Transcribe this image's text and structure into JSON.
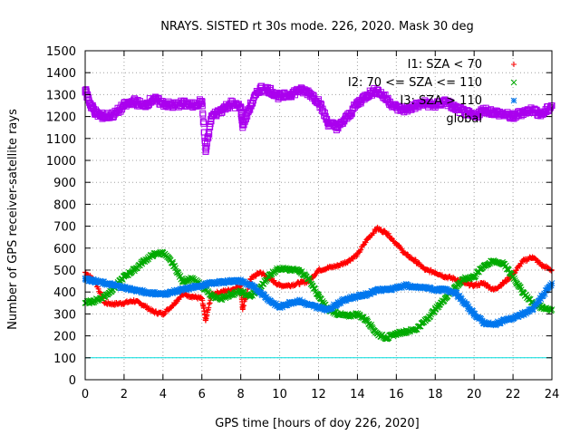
{
  "chart_data": {
    "type": "scatter",
    "title": "NRAYS. SISTED rt 30s mode. 226, 2020. Mask 30 deg",
    "xlabel": "GPS time [hours of doy 226, 2020]",
    "ylabel": "Number of GPS receiver-satellite rays",
    "xlim": [
      0,
      24
    ],
    "ylim": [
      0,
      1500
    ],
    "x_ticks": [
      0,
      2,
      4,
      6,
      8,
      10,
      12,
      14,
      16,
      18,
      20,
      22,
      24
    ],
    "y_ticks": [
      0,
      100,
      200,
      300,
      400,
      500,
      600,
      700,
      800,
      900,
      1000,
      1100,
      1200,
      1300,
      1400,
      1500
    ],
    "grid": true,
    "legend_position": "top-right",
    "threshold_line": {
      "y": 100,
      "color": "#00dddd"
    },
    "series": [
      {
        "name": "I1: SZA < 70",
        "marker": "+",
        "color": "#ff0000",
        "points": [
          [
            0,
            490
          ],
          [
            0.5,
            450
          ],
          [
            1,
            350
          ],
          [
            1.5,
            345
          ],
          [
            2,
            350
          ],
          [
            2.5,
            360
          ],
          [
            3,
            340
          ],
          [
            3.5,
            310
          ],
          [
            4,
            300
          ],
          [
            4.5,
            340
          ],
          [
            5,
            390
          ],
          [
            5.5,
            380
          ],
          [
            6,
            370
          ],
          [
            6.2,
            270
          ],
          [
            6.5,
            390
          ],
          [
            7,
            400
          ],
          [
            7.5,
            410
          ],
          [
            8,
            430
          ],
          [
            8.1,
            320
          ],
          [
            8.5,
            460
          ],
          [
            9,
            490
          ],
          [
            9.5,
            460
          ],
          [
            10,
            430
          ],
          [
            10.5,
            430
          ],
          [
            11,
            440
          ],
          [
            11.5,
            450
          ],
          [
            12,
            500
          ],
          [
            12.5,
            510
          ],
          [
            13,
            520
          ],
          [
            13.5,
            540
          ],
          [
            14,
            570
          ],
          [
            14.5,
            640
          ],
          [
            15,
            690
          ],
          [
            15.5,
            670
          ],
          [
            16,
            620
          ],
          [
            16.5,
            570
          ],
          [
            17,
            540
          ],
          [
            17.5,
            500
          ],
          [
            18,
            490
          ],
          [
            18.5,
            470
          ],
          [
            19,
            460
          ],
          [
            19.5,
            440
          ],
          [
            20,
            430
          ],
          [
            20.5,
            440
          ],
          [
            21,
            410
          ],
          [
            21.5,
            440
          ],
          [
            22,
            480
          ],
          [
            22.5,
            540
          ],
          [
            23,
            560
          ],
          [
            23.5,
            520
          ],
          [
            24,
            500
          ]
        ]
      },
      {
        "name": "I2: 70 <= SZA <= 110",
        "marker": "x",
        "color": "#00aa00",
        "points": [
          [
            0,
            350
          ],
          [
            0.5,
            360
          ],
          [
            1,
            380
          ],
          [
            1.5,
            420
          ],
          [
            2,
            470
          ],
          [
            2.5,
            500
          ],
          [
            3,
            540
          ],
          [
            3.5,
            570
          ],
          [
            4,
            580
          ],
          [
            4.5,
            530
          ],
          [
            5,
            450
          ],
          [
            5.5,
            460
          ],
          [
            6,
            430
          ],
          [
            6.5,
            380
          ],
          [
            7,
            370
          ],
          [
            7.5,
            390
          ],
          [
            8,
            400
          ],
          [
            8.5,
            380
          ],
          [
            9,
            420
          ],
          [
            9.5,
            480
          ],
          [
            10,
            510
          ],
          [
            10.5,
            500
          ],
          [
            11,
            500
          ],
          [
            11.5,
            460
          ],
          [
            12,
            380
          ],
          [
            12.5,
            320
          ],
          [
            13,
            300
          ],
          [
            13.5,
            290
          ],
          [
            14,
            300
          ],
          [
            14.5,
            270
          ],
          [
            15,
            210
          ],
          [
            15.5,
            190
          ],
          [
            16,
            210
          ],
          [
            16.5,
            220
          ],
          [
            17,
            230
          ],
          [
            17.5,
            270
          ],
          [
            18,
            320
          ],
          [
            18.5,
            370
          ],
          [
            19,
            420
          ],
          [
            19.5,
            460
          ],
          [
            20,
            470
          ],
          [
            20.5,
            520
          ],
          [
            21,
            540
          ],
          [
            21.5,
            530
          ],
          [
            22,
            470
          ],
          [
            22.5,
            400
          ],
          [
            23,
            350
          ],
          [
            23.5,
            330
          ],
          [
            24,
            320
          ]
        ]
      },
      {
        "name": "I3: SZA > 110",
        "marker": "*",
        "color": "#0077ee",
        "points": [
          [
            0,
            460
          ],
          [
            0.5,
            450
          ],
          [
            1,
            440
          ],
          [
            1.5,
            430
          ],
          [
            2,
            420
          ],
          [
            2.5,
            410
          ],
          [
            3,
            400
          ],
          [
            3.5,
            395
          ],
          [
            4,
            390
          ],
          [
            4.5,
            400
          ],
          [
            5,
            410
          ],
          [
            5.5,
            420
          ],
          [
            6,
            430
          ],
          [
            6.5,
            440
          ],
          [
            7,
            445
          ],
          [
            7.5,
            450
          ],
          [
            8,
            450
          ],
          [
            8.5,
            430
          ],
          [
            9,
            400
          ],
          [
            9.5,
            360
          ],
          [
            10,
            330
          ],
          [
            10.5,
            350
          ],
          [
            11,
            360
          ],
          [
            11.5,
            340
          ],
          [
            12,
            330
          ],
          [
            12.5,
            320
          ],
          [
            13,
            350
          ],
          [
            13.5,
            370
          ],
          [
            14,
            380
          ],
          [
            14.5,
            390
          ],
          [
            15,
            410
          ],
          [
            15.5,
            410
          ],
          [
            16,
            420
          ],
          [
            16.5,
            430
          ],
          [
            17,
            420
          ],
          [
            17.5,
            420
          ],
          [
            18,
            410
          ],
          [
            18.5,
            410
          ],
          [
            19,
            400
          ],
          [
            19.5,
            350
          ],
          [
            20,
            300
          ],
          [
            20.5,
            260
          ],
          [
            21,
            250
          ],
          [
            21.5,
            270
          ],
          [
            22,
            280
          ],
          [
            22.5,
            300
          ],
          [
            23,
            320
          ],
          [
            23.5,
            380
          ],
          [
            24,
            440
          ]
        ]
      },
      {
        "name": "global",
        "marker": "square",
        "color": "#aa00ee",
        "points": [
          [
            0,
            1320
          ],
          [
            0.3,
            1250
          ],
          [
            0.6,
            1210
          ],
          [
            1,
            1200
          ],
          [
            1.5,
            1210
          ],
          [
            2,
            1250
          ],
          [
            2.5,
            1270
          ],
          [
            3,
            1250
          ],
          [
            3.5,
            1280
          ],
          [
            4,
            1260
          ],
          [
            4.5,
            1250
          ],
          [
            5,
            1260
          ],
          [
            5.5,
            1250
          ],
          [
            6,
            1270
          ],
          [
            6.2,
            1040
          ],
          [
            6.5,
            1200
          ],
          [
            7,
            1230
          ],
          [
            7.5,
            1260
          ],
          [
            8,
            1240
          ],
          [
            8.1,
            1160
          ],
          [
            8.5,
            1250
          ],
          [
            9,
            1330
          ],
          [
            9.5,
            1320
          ],
          [
            10,
            1290
          ],
          [
            10.5,
            1300
          ],
          [
            11,
            1320
          ],
          [
            11.5,
            1310
          ],
          [
            12,
            1270
          ],
          [
            12.5,
            1170
          ],
          [
            13,
            1150
          ],
          [
            13.5,
            1200
          ],
          [
            14,
            1260
          ],
          [
            14.5,
            1300
          ],
          [
            15,
            1320
          ],
          [
            15.5,
            1280
          ],
          [
            16,
            1240
          ],
          [
            16.5,
            1230
          ],
          [
            17,
            1250
          ],
          [
            17.5,
            1260
          ],
          [
            18,
            1250
          ],
          [
            18.5,
            1270
          ],
          [
            19,
            1240
          ],
          [
            19.5,
            1220
          ],
          [
            20,
            1200
          ],
          [
            20.5,
            1230
          ],
          [
            21,
            1220
          ],
          [
            21.5,
            1210
          ],
          [
            22,
            1200
          ],
          [
            22.5,
            1220
          ],
          [
            23,
            1230
          ],
          [
            23.5,
            1210
          ],
          [
            24,
            1250
          ]
        ]
      }
    ]
  }
}
